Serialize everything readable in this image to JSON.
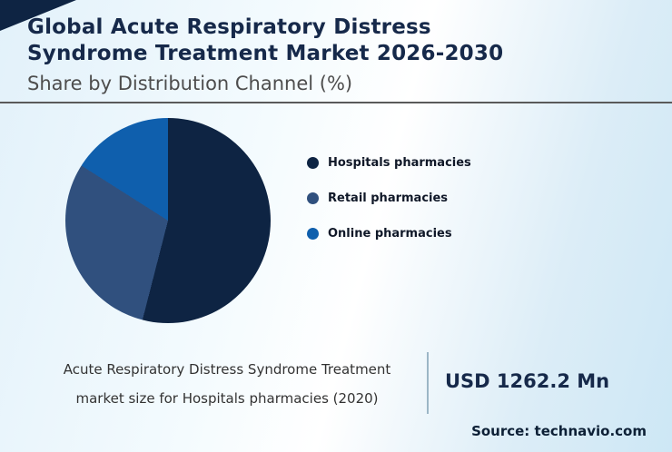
{
  "header": {
    "title_line1": "Global Acute Respiratory Distress",
    "title_line2": "Syndrome Treatment Market 2026-2030",
    "subtitle": "Share by Distribution Channel (%)"
  },
  "chart_data": {
    "type": "pie",
    "title": "Global Acute Respiratory Distress Syndrome Treatment Market 2026-2030 — Share by Distribution Channel (%)",
    "labels": [
      "Hospitals pharmacies",
      "Retail pharmacies",
      "Online pharmacies"
    ],
    "values": [
      54,
      30,
      16
    ],
    "values_note": "estimated from slice geometry; no numeric data labels shown in image",
    "colors": [
      "#0e2443",
      "#30507e",
      "#0f5fad"
    ],
    "legend_position": "right",
    "start_angle_deg": 0,
    "direction": "clockwise"
  },
  "footer": {
    "caption_line1": "Acute Respiratory Distress Syndrome Treatment",
    "caption_line2": "market size for Hospitals pharmacies (2020)",
    "value": "USD 1262.2 Mn",
    "source": "Source: technavio.com"
  }
}
